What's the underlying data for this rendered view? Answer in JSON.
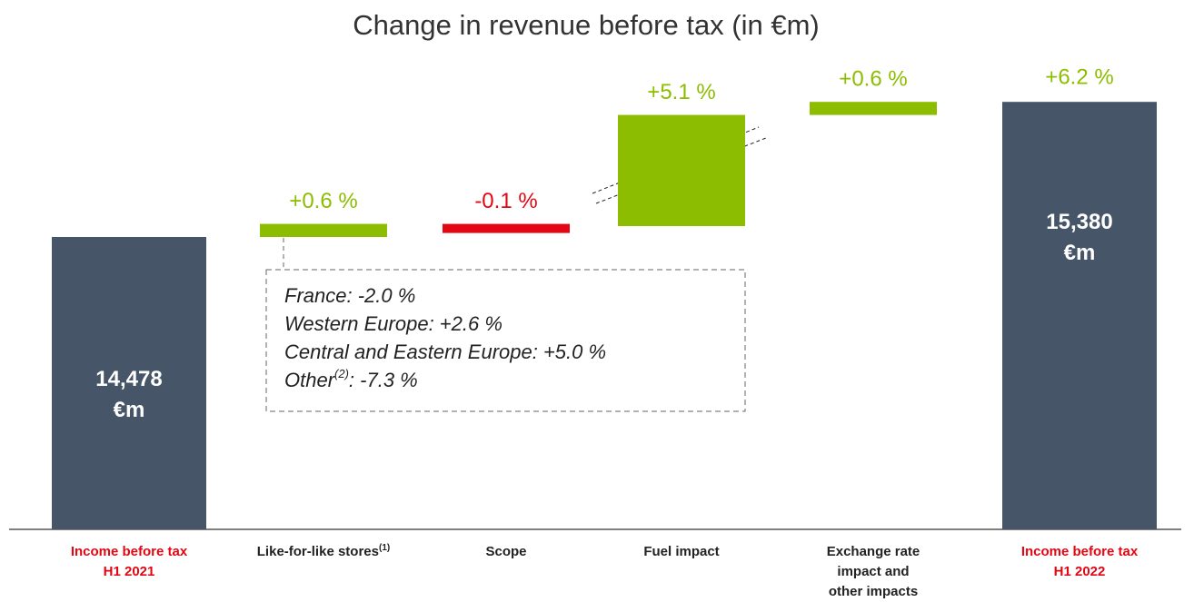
{
  "chart_data": {
    "type": "waterfall",
    "title": "Change in revenue before tax (in €m)",
    "categories": [
      [
        "Income before tax",
        "H1 2021"
      ],
      [
        "Like-for-like stores"
      ],
      [
        "Scope"
      ],
      [
        "Fuel impact"
      ],
      [
        "Exchange rate",
        "impact and",
        "other impacts"
      ],
      [
        "Income before tax",
        "H1 2022"
      ]
    ],
    "category_notes": [
      null,
      "(1)",
      null,
      null,
      null,
      null
    ],
    "kinds": [
      "total",
      "change",
      "change",
      "change",
      "change",
      "total"
    ],
    "values": [
      14478,
      0.6,
      -0.1,
      5.1,
      0.6,
      15380
    ],
    "value_labels": [
      "14,478 €m",
      "+0.6 %",
      "-0.1 %",
      "+5.1 %",
      "+0.6 %",
      "15,380 €m"
    ],
    "total_change": 6.2,
    "total_change_label": "+6.2 %",
    "colors": {
      "total": "#465568",
      "increase": "#8cbd00",
      "decrease": "#e30613",
      "total_label": "#e30613"
    },
    "annotation": {
      "lines": [
        "France: -2.0 %",
        "Western Europe: +2.6 %",
        "Central and Eastern Europe: +5.0 %"
      ],
      "last": {
        "label": "Other",
        "note": "(2)",
        "rest": ": -7.3 %"
      }
    }
  }
}
